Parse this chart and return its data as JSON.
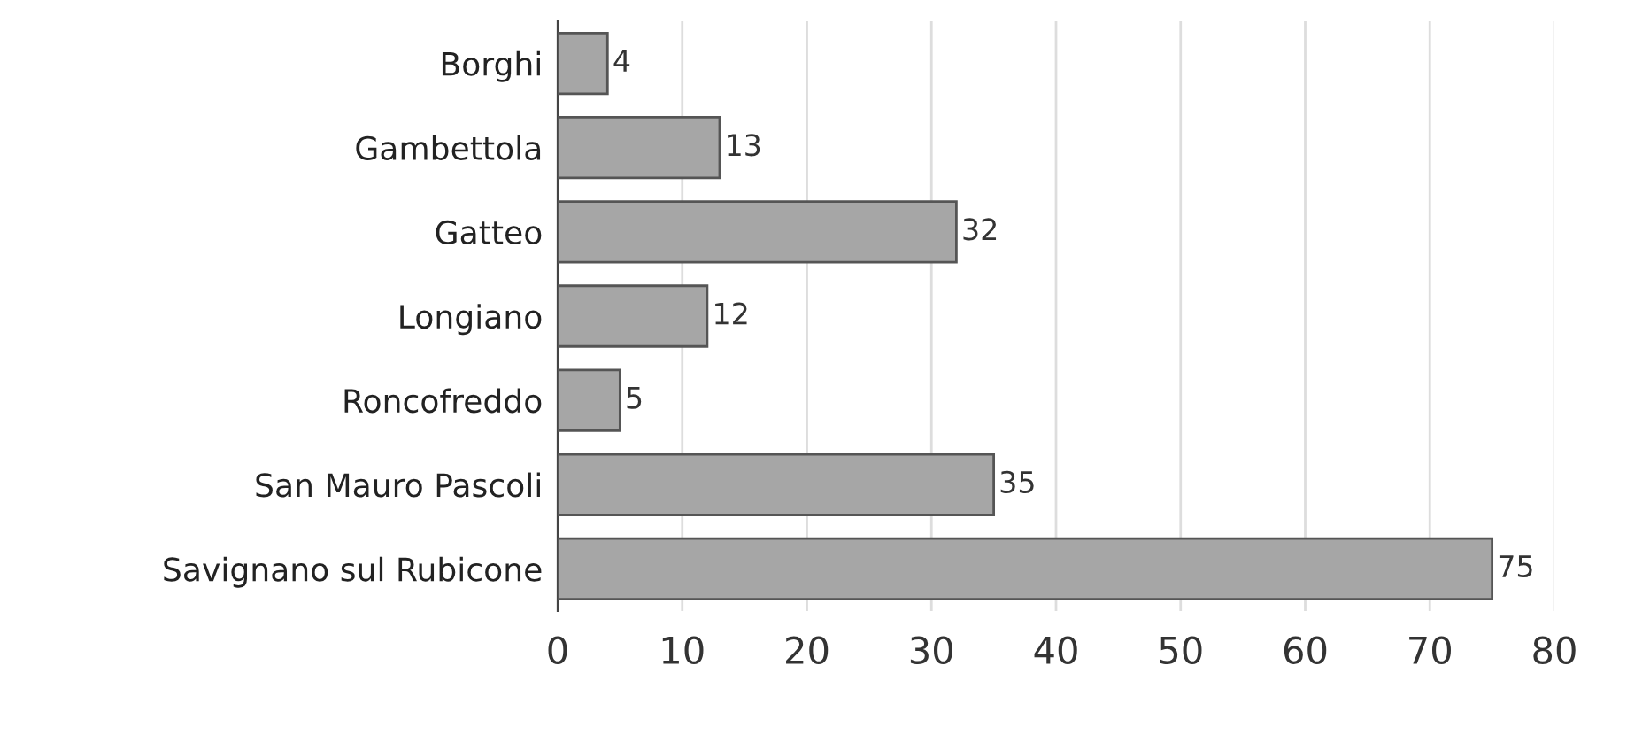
{
  "chart_data": {
    "type": "bar",
    "orientation": "horizontal",
    "categories": [
      "Borghi",
      "Gambettola",
      "Gatteo",
      "Longiano",
      "Roncofreddo",
      "San Mauro Pascoli",
      "Savignano sul Rubicone"
    ],
    "values": [
      4,
      13,
      32,
      12,
      5,
      35,
      75
    ],
    "color": "#a6a6a6",
    "xlim": [
      0,
      80
    ],
    "xticks": [
      0,
      10,
      20,
      30,
      40,
      50,
      60,
      70,
      80
    ],
    "grid": "x",
    "data_labels": true
  }
}
